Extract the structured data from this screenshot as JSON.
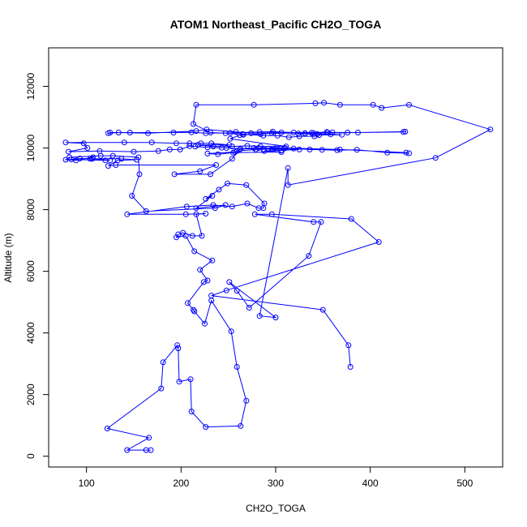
{
  "chart_data": {
    "type": "line",
    "title": "ATOM1 Northeast_Pacific CH2O_TOGA",
    "xlabel": "CH2O_TOGA",
    "ylabel": "Altitude (m)",
    "xlim": [
      60,
      540
    ],
    "ylim": [
      -350,
      13250
    ],
    "xticks": [
      100,
      200,
      300,
      400,
      500
    ],
    "yticks": [
      0,
      2000,
      4000,
      6000,
      8000,
      10000,
      12000
    ],
    "grid": false,
    "legend": "none",
    "marker": "open-circle",
    "color": "#0000ff",
    "points": [
      [
        168,
        200
      ],
      [
        163,
        200
      ],
      [
        143,
        200
      ],
      [
        166,
        600
      ],
      [
        122,
        900
      ],
      [
        179,
        2200
      ],
      [
        181,
        3050
      ],
      [
        196,
        3600
      ],
      [
        197,
        3500
      ],
      [
        198,
        2420
      ],
      [
        210,
        2500
      ],
      [
        211,
        1450
      ],
      [
        226,
        950
      ],
      [
        263,
        980
      ],
      [
        269,
        1800
      ],
      [
        259,
        2900
      ],
      [
        253,
        4050
      ],
      [
        232,
        5050
      ],
      [
        225,
        4300
      ],
      [
        214,
        4700
      ],
      [
        213,
        4750
      ],
      [
        207,
        4970
      ],
      [
        224,
        5650
      ],
      [
        228,
        5700
      ],
      [
        220,
        6050
      ],
      [
        233,
        6350
      ],
      [
        214,
        6650
      ],
      [
        205,
        7150
      ],
      [
        195,
        7100
      ],
      [
        197,
        7200
      ],
      [
        202,
        7250
      ],
      [
        212,
        7150
      ],
      [
        222,
        7150
      ],
      [
        216,
        7850
      ],
      [
        226,
        7870
      ],
      [
        205,
        7850
      ],
      [
        143,
        7850
      ],
      [
        206,
        8100
      ],
      [
        234,
        8150
      ],
      [
        254,
        8100
      ],
      [
        270,
        8200
      ],
      [
        282,
        8050
      ],
      [
        287,
        8050
      ],
      [
        288,
        8200
      ],
      [
        269,
        8800
      ],
      [
        249,
        8850
      ],
      [
        240,
        8650
      ],
      [
        226,
        8350
      ],
      [
        233,
        8450
      ],
      [
        216,
        8050
      ],
      [
        247,
        8150
      ],
      [
        236,
        8050
      ],
      [
        163,
        7950
      ],
      [
        148,
        8450
      ],
      [
        156,
        9150
      ],
      [
        155,
        9700
      ],
      [
        128,
        9750
      ],
      [
        115,
        9750
      ],
      [
        82,
        9700
      ],
      [
        78,
        9620
      ],
      [
        89,
        9600
      ],
      [
        107,
        9700
      ],
      [
        104,
        9650
      ],
      [
        93,
        9660
      ],
      [
        84,
        9630
      ],
      [
        120,
        9600
      ],
      [
        125,
        9600
      ],
      [
        106,
        9650
      ],
      [
        137,
        9650
      ],
      [
        153,
        9620
      ],
      [
        133,
        9600
      ],
      [
        123,
        9420
      ],
      [
        131,
        9450
      ],
      [
        237,
        9450
      ],
      [
        220,
        9250
      ],
      [
        193,
        9150
      ],
      [
        231,
        9150
      ],
      [
        254,
        9650
      ],
      [
        262,
        9950
      ],
      [
        277,
        10000
      ],
      [
        292,
        9980
      ],
      [
        325,
        9950
      ],
      [
        288,
        9900
      ],
      [
        306,
        9870
      ],
      [
        255,
        9850
      ],
      [
        239,
        9800
      ],
      [
        228,
        9820
      ],
      [
        257,
        9870
      ],
      [
        259,
        9900
      ],
      [
        279,
        9950
      ],
      [
        301,
        10020
      ],
      [
        309,
        9980
      ],
      [
        282,
        10000
      ],
      [
        296,
        9950
      ],
      [
        306,
        9920
      ],
      [
        319,
        9980
      ],
      [
        336,
        9950
      ],
      [
        349,
        9940
      ],
      [
        365,
        9930
      ],
      [
        386,
        9940
      ],
      [
        418,
        9850
      ],
      [
        441,
        9830
      ],
      [
        438,
        9850
      ],
      [
        368,
        9950
      ],
      [
        310,
        10000
      ],
      [
        287,
        9960
      ],
      [
        263,
        9980
      ],
      [
        248,
        10000
      ],
      [
        243,
        10010
      ],
      [
        228,
        10020
      ],
      [
        215,
        10050
      ],
      [
        209,
        10060
      ],
      [
        199,
        9950
      ],
      [
        188,
        9950
      ],
      [
        176,
        9900
      ],
      [
        150,
        9880
      ],
      [
        114,
        9900
      ],
      [
        81,
        9880
      ],
      [
        101,
        10000
      ],
      [
        97,
        10150
      ],
      [
        78,
        10180
      ],
      [
        140,
        10180
      ],
      [
        169,
        10180
      ],
      [
        195,
        10150
      ],
      [
        209,
        10150
      ],
      [
        221,
        10150
      ],
      [
        232,
        10150
      ],
      [
        251,
        10100
      ],
      [
        218,
        10100
      ],
      [
        234,
        10050
      ],
      [
        254,
        10050
      ],
      [
        270,
        10070
      ],
      [
        284,
        10050
      ],
      [
        311,
        10050
      ],
      [
        252,
        10300
      ],
      [
        262,
        10420
      ],
      [
        266,
        10430
      ],
      [
        284,
        10450
      ],
      [
        296,
        10480
      ],
      [
        331,
        10480
      ],
      [
        355,
        10500
      ],
      [
        319,
        10500
      ],
      [
        297,
        10530
      ],
      [
        283,
        10520
      ],
      [
        252,
        10490
      ],
      [
        226,
        10480
      ],
      [
        211,
        10510
      ],
      [
        192,
        10500
      ],
      [
        146,
        10500
      ],
      [
        125,
        10500
      ],
      [
        123,
        10480
      ],
      [
        134,
        10500
      ],
      [
        165,
        10480
      ],
      [
        216,
        10550
      ],
      [
        227,
        10600
      ],
      [
        258,
        10520
      ],
      [
        274,
        10480
      ],
      [
        306,
        10500
      ],
      [
        331,
        10470
      ],
      [
        338,
        10490
      ],
      [
        354,
        10520
      ],
      [
        360,
        10510
      ],
      [
        376,
        10500
      ],
      [
        387,
        10500
      ],
      [
        437,
        10530
      ],
      [
        435,
        10520
      ],
      [
        340,
        10480
      ],
      [
        324,
        10470
      ],
      [
        344,
        10450
      ],
      [
        358,
        10440
      ],
      [
        370,
        10430
      ],
      [
        346,
        10420
      ],
      [
        341,
        10380
      ],
      [
        325,
        10380
      ],
      [
        314,
        10350
      ],
      [
        302,
        10400
      ],
      [
        287,
        10400
      ],
      [
        265,
        10450
      ],
      [
        247,
        10480
      ],
      [
        231,
        10500
      ],
      [
        213,
        10780
      ],
      [
        216,
        11400
      ],
      [
        277,
        11400
      ],
      [
        342,
        11450
      ],
      [
        351,
        11470
      ],
      [
        368,
        11400
      ],
      [
        403,
        11400
      ],
      [
        412,
        11300
      ],
      [
        441,
        11400
      ],
      [
        527,
        10600
      ],
      [
        469,
        9680
      ],
      [
        313,
        8800
      ],
      [
        313,
        9350
      ],
      [
        283,
        4550
      ],
      [
        300,
        4500
      ],
      [
        251,
        5650
      ],
      [
        259,
        5370
      ],
      [
        272,
        4820
      ],
      [
        335,
        6500
      ],
      [
        348,
        7600
      ],
      [
        340,
        7600
      ],
      [
        278,
        7850
      ],
      [
        296,
        7850
      ],
      [
        380,
        7700
      ],
      [
        409,
        6950
      ],
      [
        248,
        5380
      ],
      [
        232,
        5210
      ],
      [
        350,
        4750
      ],
      [
        377,
        3600
      ],
      [
        379,
        2900
      ]
    ]
  }
}
